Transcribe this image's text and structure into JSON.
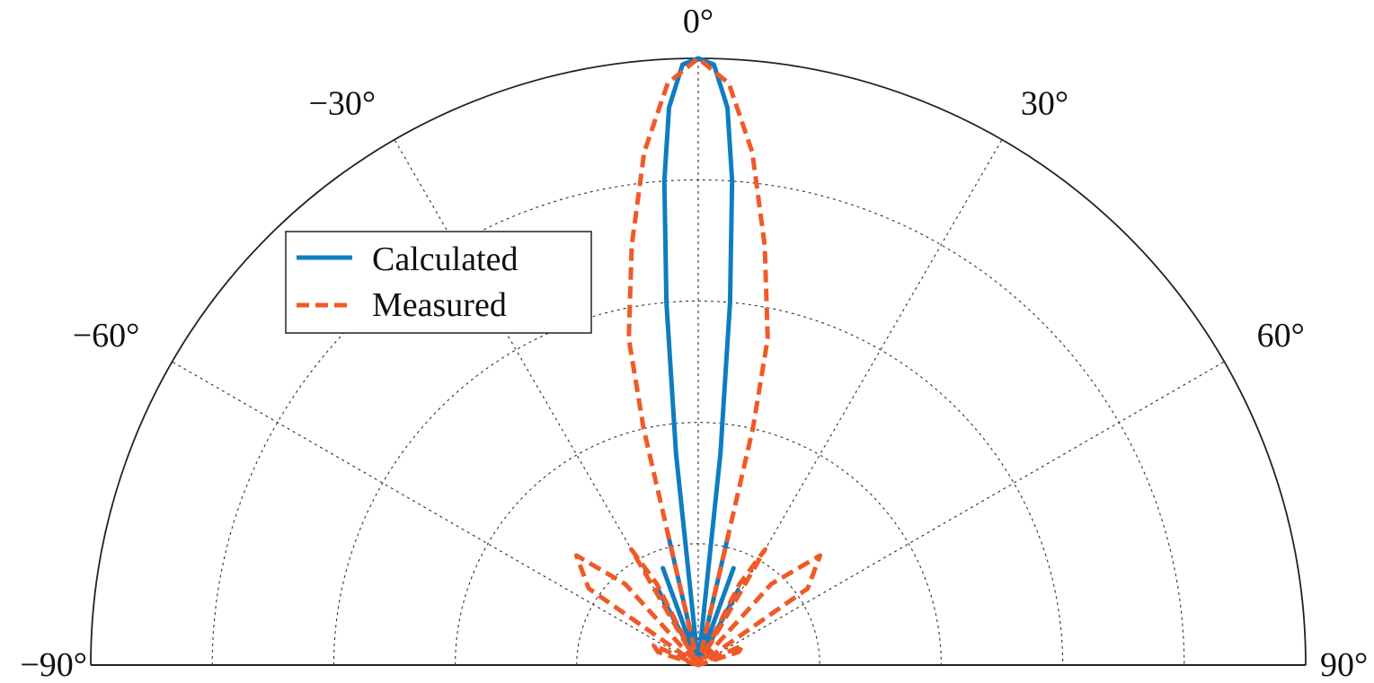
{
  "chart_data": {
    "type": "polar-line",
    "title": "",
    "angle_unit": "degrees",
    "theta_range": [
      -90,
      90
    ],
    "r_range": [
      0,
      1
    ],
    "r_rings": [
      0.2,
      0.4,
      0.6,
      0.8,
      1.0
    ],
    "grid": true,
    "legend_position": "upper-left",
    "theta_ticks": [
      {
        "deg": -90,
        "label": "−90°"
      },
      {
        "deg": -60,
        "label": "−60°"
      },
      {
        "deg": -30,
        "label": "−30°"
      },
      {
        "deg": 0,
        "label": "0°"
      },
      {
        "deg": 30,
        "label": "30°"
      },
      {
        "deg": 60,
        "label": "60°"
      },
      {
        "deg": 90,
        "label": "90°"
      }
    ],
    "series": [
      {
        "name": "Calculated",
        "style": "solid",
        "color": "#0f7dbf",
        "points": [
          [
            -30,
            0.0
          ],
          [
            -28,
            0.14
          ],
          [
            -25,
            0.0
          ],
          [
            -22,
            0.0
          ],
          [
            -20,
            0.17
          ],
          [
            -18,
            0.0
          ],
          [
            -16,
            0.0
          ],
          [
            -13,
            0.22
          ],
          [
            -11,
            0.0
          ],
          [
            -9,
            0.0
          ],
          [
            -6,
            0.35
          ],
          [
            -5,
            0.6
          ],
          [
            -4,
            0.8
          ],
          [
            -3,
            0.92
          ],
          [
            -1.5,
            0.99
          ],
          [
            0,
            1.0
          ],
          [
            1.5,
            0.99
          ],
          [
            3,
            0.92
          ],
          [
            4,
            0.8
          ],
          [
            5,
            0.6
          ],
          [
            6,
            0.35
          ],
          [
            9,
            0.0
          ],
          [
            11,
            0.0
          ],
          [
            13,
            0.22
          ],
          [
            16,
            0.0
          ],
          [
            18,
            0.0
          ],
          [
            20,
            0.17
          ],
          [
            22,
            0.0
          ],
          [
            25,
            0.0
          ],
          [
            28,
            0.14
          ],
          [
            30,
            0.0
          ]
        ]
      },
      {
        "name": "Measured",
        "style": "dashed",
        "color": "#f05a28",
        "points": [
          [
            -74,
            0.0
          ],
          [
            -72,
            0.07
          ],
          [
            -66,
            0.08
          ],
          [
            -62,
            0.0
          ],
          [
            -60,
            0.0
          ],
          [
            -55,
            0.22
          ],
          [
            -48,
            0.27
          ],
          [
            -42,
            0.18
          ],
          [
            -38,
            0.0
          ],
          [
            -34,
            0.0
          ],
          [
            -30,
            0.22
          ],
          [
            -27,
            0.15
          ],
          [
            -24,
            0.0
          ],
          [
            -20,
            0.0
          ],
          [
            -13,
            0.4
          ],
          [
            -12,
            0.55
          ],
          [
            -9,
            0.7
          ],
          [
            -6,
            0.85
          ],
          [
            -3,
            0.96
          ],
          [
            0,
            1.0
          ],
          [
            3,
            0.96
          ],
          [
            6,
            0.85
          ],
          [
            9,
            0.7
          ],
          [
            12,
            0.55
          ],
          [
            13,
            0.4
          ],
          [
            20,
            0.0
          ],
          [
            24,
            0.0
          ],
          [
            27,
            0.15
          ],
          [
            30,
            0.22
          ],
          [
            34,
            0.0
          ],
          [
            38,
            0.0
          ],
          [
            42,
            0.18
          ],
          [
            48,
            0.27
          ],
          [
            55,
            0.22
          ],
          [
            60,
            0.0
          ],
          [
            62,
            0.0
          ],
          [
            66,
            0.08
          ],
          [
            72,
            0.07
          ],
          [
            74,
            0.0
          ]
        ]
      }
    ]
  }
}
